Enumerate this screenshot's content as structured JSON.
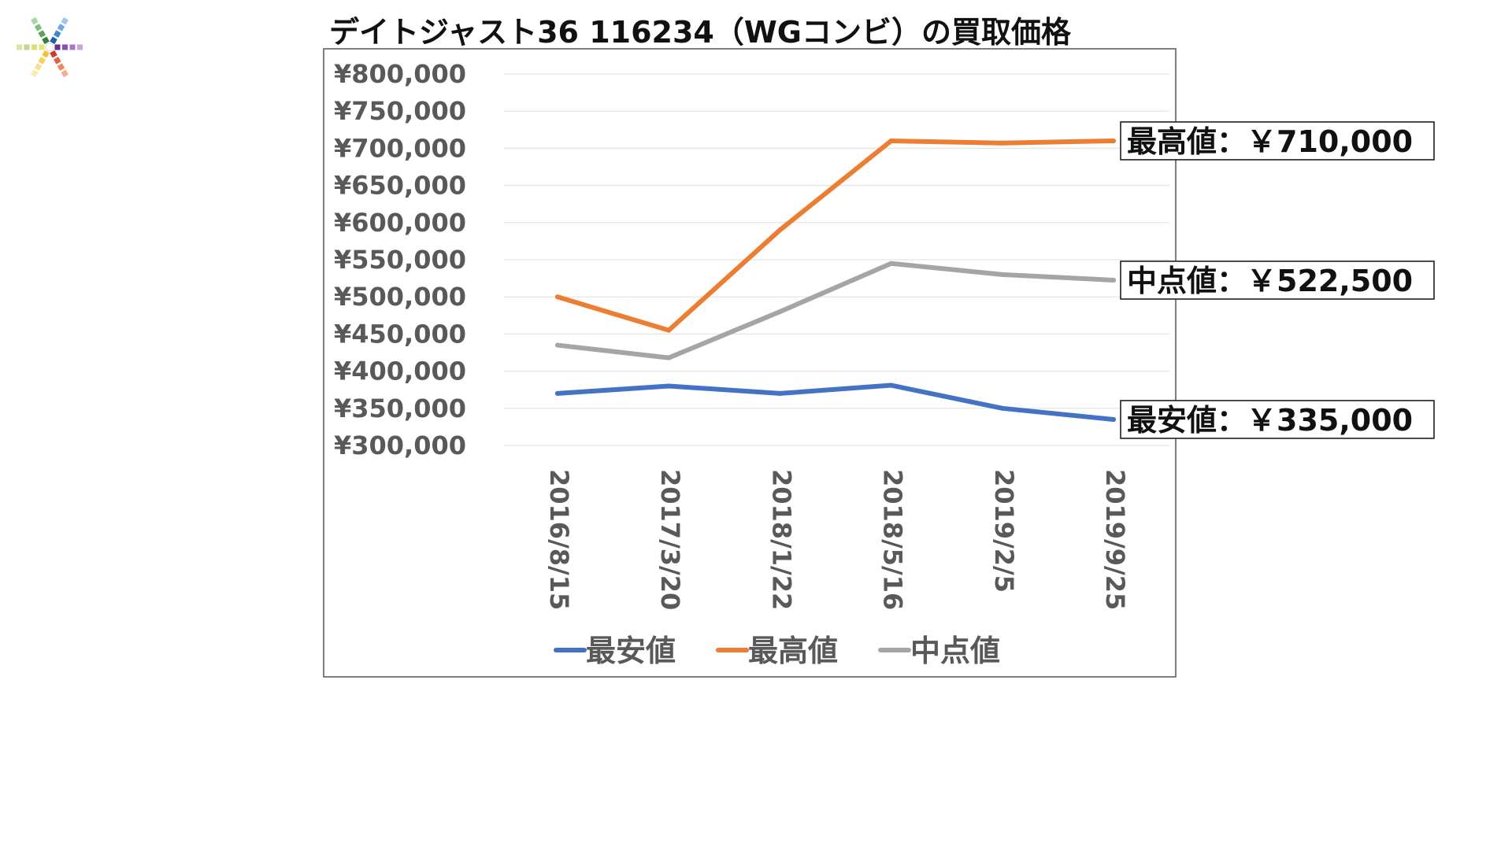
{
  "title": "デイトジャスト36 116234（WGコンビ）の買取価格",
  "colors": {
    "min_series": "#4472C4",
    "max_series": "#ED7D31",
    "mid_series": "#A5A5A5",
    "tick_text": "#595959",
    "gridline": "#E4E4E4",
    "frame": "#555555"
  },
  "logo": {
    "icon": "colorful-asterisk-logo-icon"
  },
  "chart_data": {
    "type": "line",
    "title": "デイトジャスト36 116234（WGコンビ）の買取価格",
    "xlabel": "",
    "ylabel": "",
    "categories": [
      "2016/8/15",
      "2017/3/20",
      "2018/1/22",
      "2018/5/16",
      "2019/2/5",
      "2019/9/25"
    ],
    "y_ticks": [
      "¥300,000",
      "¥350,000",
      "¥400,000",
      "¥450,000",
      "¥500,000",
      "¥550,000",
      "¥600,000",
      "¥650,000",
      "¥700,000",
      "¥750,000",
      "¥800,000"
    ],
    "ylim": [
      300000,
      800000
    ],
    "grid": true,
    "legend_position": "bottom",
    "series": [
      {
        "name": "最安値",
        "color": "#4472C4",
        "values": [
          370000,
          380000,
          370000,
          381000,
          350000,
          335000
        ]
      },
      {
        "name": "最高値",
        "color": "#ED7D31",
        "values": [
          500000,
          455000,
          590000,
          710000,
          707000,
          710000
        ]
      },
      {
        "name": "中点値",
        "color": "#A5A5A5",
        "values": [
          435000,
          418000,
          480000,
          545000,
          530000,
          522500
        ]
      }
    ],
    "annotations": [
      {
        "series": "最高値",
        "text": "最高値：￥710,000"
      },
      {
        "series": "中点値",
        "text": "中点値：￥522,500"
      },
      {
        "series": "最安値",
        "text": "最安値：￥335,000"
      }
    ]
  }
}
